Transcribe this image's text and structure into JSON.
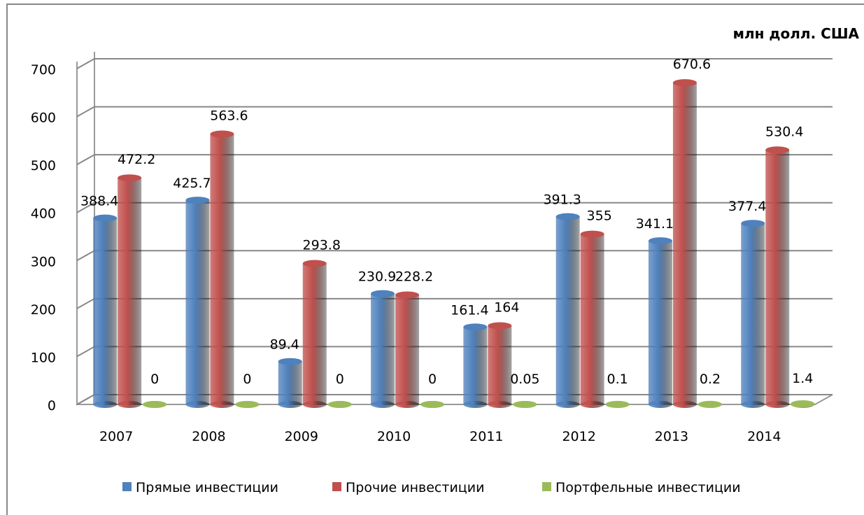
{
  "chart_data": {
    "type": "bar3d",
    "subtitle": "млн долл. США",
    "categories": [
      "2007",
      "2008",
      "2009",
      "2010",
      "2011",
      "2012",
      "2013",
      "2014"
    ],
    "series": [
      {
        "name": "Прямые инвестиции",
        "color": "#4f81bd",
        "values": [
          388.4,
          425.7,
          89.4,
          230.9,
          161.4,
          391.3,
          341.1,
          377.4
        ]
      },
      {
        "name": "Прочие инвестиции",
        "color": "#c0504d",
        "values": [
          472.2,
          563.6,
          293.8,
          228.2,
          164,
          355,
          670.6,
          530.4
        ]
      },
      {
        "name": "Портфельные инвестиции",
        "color": "#9bbb59",
        "values": [
          0,
          0,
          0,
          0,
          0.05,
          0.1,
          0.2,
          1.4
        ]
      }
    ],
    "ylim": [
      0,
      700
    ],
    "yticks": [
      0,
      100,
      200,
      300,
      400,
      500,
      600,
      700
    ],
    "grid": true,
    "legend": "bottom"
  }
}
